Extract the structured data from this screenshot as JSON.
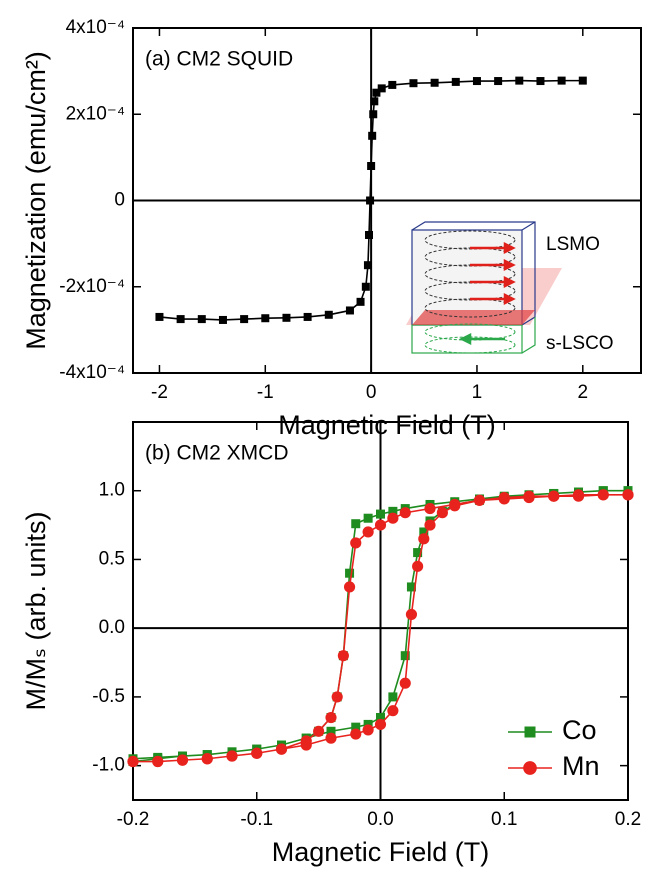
{
  "chart_data": [
    {
      "type": "line",
      "title": "(a) CM2 SQUID",
      "xlabel": "Magnetic Field (T)",
      "ylabel": "Magnetization (emu/cm²)",
      "xlim": [
        -2.25,
        2.55
      ],
      "ylim": [
        -0.0004,
        0.0004
      ],
      "xticks": [
        -2,
        -1,
        0,
        1,
        2
      ],
      "yticks": [
        {
          "value": -0.0004,
          "label": "-4x10⁻⁴"
        },
        {
          "value": -0.0002,
          "label": "-2x10⁻⁴"
        },
        0,
        {
          "value": 0.0002,
          "label": "2x10⁻⁴"
        },
        {
          "value": 0.0004,
          "label": "4x10⁻⁴"
        }
      ],
      "x": [
        -2,
        -1.8,
        -1.6,
        -1.4,
        -1.2,
        -1.0,
        -0.8,
        -0.6,
        -0.4,
        -0.2,
        -0.1,
        -0.05,
        -0.03,
        -0.02,
        -0.01,
        0,
        0.01,
        0.02,
        0.03,
        0.05,
        0.1,
        0.2,
        0.4,
        0.6,
        0.8,
        1.0,
        1.2,
        1.4,
        1.6,
        1.8,
        2.0
      ],
      "series": [
        {
          "color": "#000000",
          "marker": "square",
          "values": [
            -0.00027,
            -0.000275,
            -0.000275,
            -0.000277,
            -0.000275,
            -0.000273,
            -0.000272,
            -0.00027,
            -0.000265,
            -0.000255,
            -0.000235,
            -0.0002,
            -0.00015,
            -8e-05,
            0,
            8e-05,
            0.00015,
            0.0002,
            0.00023,
            0.00025,
            0.00026,
            0.000268,
            0.000272,
            0.000273,
            0.000275,
            0.000277,
            0.000277,
            0.000278,
            0.000277,
            0.000278,
            0.000278
          ]
        }
      ],
      "annotations": [
        {
          "text": "LSMO",
          "color": "#e0201a"
        },
        {
          "text": "s-LSCO",
          "color": "#2aa84a"
        }
      ]
    },
    {
      "type": "line",
      "title": "(b) CM2 XMCD",
      "xlabel": "Magnetic Field (T)",
      "ylabel": "M/Mₛ (arb. units)",
      "xlim": [
        -0.2,
        0.2
      ],
      "ylim": [
        -1.25,
        1.5
      ],
      "xticks": [
        -0.2,
        -0.1,
        {
          "value": 0,
          "label": "0.0"
        },
        0.1,
        0.2
      ],
      "yticks": [
        {
          "value": -1,
          "label": "-1.0"
        },
        -0.5,
        {
          "value": 0,
          "label": "0.0"
        },
        0.5,
        {
          "value": 1,
          "label": "1.0"
        }
      ],
      "legend": "lower right",
      "series": [
        {
          "name": "Co",
          "color": "#1e8c1e",
          "marker": "square",
          "x": [
            0.2,
            0.18,
            0.16,
            0.14,
            0.12,
            0.1,
            0.08,
            0.06,
            0.04,
            0.02,
            0.01,
            0,
            -0.01,
            -0.02,
            -0.025,
            -0.03,
            -0.035,
            -0.04,
            -0.05,
            -0.06,
            -0.08,
            -0.1,
            -0.12,
            -0.14,
            -0.16,
            -0.18,
            -0.2,
            -0.2,
            -0.18,
            -0.16,
            -0.14,
            -0.12,
            -0.1,
            -0.08,
            -0.06,
            -0.04,
            -0.02,
            -0.01,
            0,
            0.01,
            0.02,
            0.025,
            0.03,
            0.035,
            0.04,
            0.05,
            0.06,
            0.08,
            0.1,
            0.12,
            0.14,
            0.16,
            0.18,
            0.2
          ],
          "values": [
            1.0,
            1.0,
            0.99,
            0.98,
            0.97,
            0.96,
            0.94,
            0.92,
            0.9,
            0.87,
            0.85,
            0.83,
            0.8,
            0.76,
            0.4,
            -0.2,
            -0.5,
            -0.65,
            -0.75,
            -0.8,
            -0.85,
            -0.88,
            -0.9,
            -0.92,
            -0.93,
            -0.94,
            -0.95,
            -0.97,
            -0.95,
            -0.93,
            -0.92,
            -0.9,
            -0.88,
            -0.85,
            -0.8,
            -0.75,
            -0.72,
            -0.7,
            -0.65,
            -0.5,
            -0.2,
            0.3,
            0.55,
            0.7,
            0.78,
            0.85,
            0.9,
            0.93,
            0.95,
            0.97,
            0.98,
            0.99,
            1.0,
            1.0
          ]
        },
        {
          "name": "Mn",
          "color": "#e8231e",
          "marker": "circle",
          "x": [
            0.2,
            0.18,
            0.16,
            0.14,
            0.12,
            0.1,
            0.08,
            0.06,
            0.04,
            0.02,
            0.01,
            0,
            -0.01,
            -0.02,
            -0.025,
            -0.03,
            -0.035,
            -0.04,
            -0.05,
            -0.06,
            -0.08,
            -0.1,
            -0.12,
            -0.14,
            -0.16,
            -0.18,
            -0.2,
            -0.2,
            -0.18,
            -0.16,
            -0.14,
            -0.12,
            -0.1,
            -0.08,
            -0.06,
            -0.04,
            -0.02,
            -0.01,
            0,
            0.01,
            0.02,
            0.025,
            0.03,
            0.035,
            0.04,
            0.05,
            0.06,
            0.08,
            0.1,
            0.12,
            0.14,
            0.16,
            0.18,
            0.2
          ],
          "values": [
            0.97,
            0.97,
            0.96,
            0.96,
            0.95,
            0.94,
            0.93,
            0.9,
            0.87,
            0.84,
            0.8,
            0.75,
            0.7,
            0.62,
            0.3,
            -0.2,
            -0.5,
            -0.65,
            -0.75,
            -0.82,
            -0.88,
            -0.91,
            -0.93,
            -0.95,
            -0.96,
            -0.97,
            -0.97,
            -0.97,
            -0.97,
            -0.96,
            -0.95,
            -0.93,
            -0.91,
            -0.88,
            -0.85,
            -0.8,
            -0.77,
            -0.74,
            -0.7,
            -0.6,
            -0.4,
            0.1,
            0.45,
            0.65,
            0.75,
            0.84,
            0.89,
            0.93,
            0.95,
            0.96,
            0.96,
            0.97,
            0.97,
            0.97
          ]
        }
      ]
    }
  ]
}
